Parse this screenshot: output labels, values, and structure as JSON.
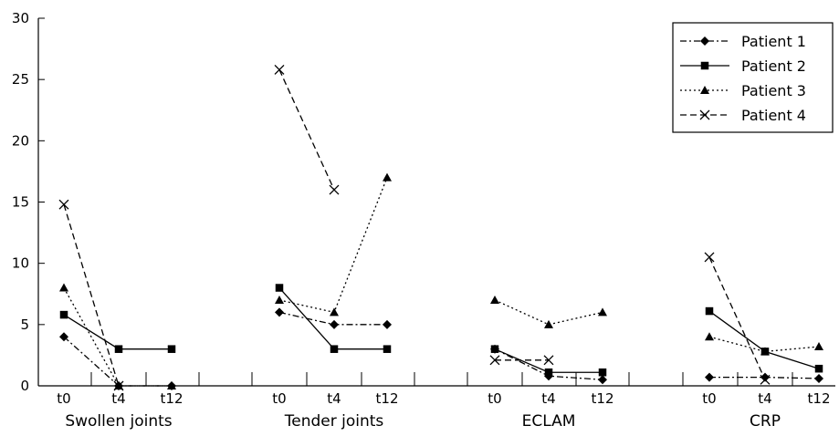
{
  "chart_data": {
    "type": "line",
    "title": "",
    "xlabel": "",
    "ylabel": "",
    "ylim": [
      0,
      30
    ],
    "y_ticks": [
      0,
      5,
      10,
      15,
      20,
      25,
      30
    ],
    "time_points": [
      "t0",
      "t4",
      "t12"
    ],
    "groups": [
      "Swollen joints",
      "Tender joints",
      "ECLAM",
      "CRP"
    ],
    "legend_position": "top-right",
    "grid": false,
    "series": [
      {
        "name": "Patient 1",
        "marker": "diamond",
        "dash": "dashdot",
        "values": {
          "Swollen joints": [
            4,
            0,
            0
          ],
          "Tender joints": [
            6,
            5,
            5
          ],
          "ECLAM": [
            3,
            0.8,
            0.5
          ],
          "CRP": [
            0.7,
            0.7,
            0.6
          ]
        }
      },
      {
        "name": "Patient 2",
        "marker": "square",
        "dash": "solid",
        "values": {
          "Swollen joints": [
            5.8,
            3,
            3
          ],
          "Tender joints": [
            8,
            3,
            3
          ],
          "ECLAM": [
            3,
            1.1,
            1.1
          ],
          "CRP": [
            6.1,
            2.8,
            1.4
          ]
        }
      },
      {
        "name": "Patient 3",
        "marker": "triangle",
        "dash": "dotted",
        "values": {
          "Swollen joints": [
            8,
            0,
            0
          ],
          "Tender joints": [
            7,
            6,
            17
          ],
          "ECLAM": [
            7,
            5,
            6
          ],
          "CRP": [
            4,
            2.8,
            3.2
          ]
        }
      },
      {
        "name": "Patient 4",
        "marker": "x",
        "dash": "dashed",
        "values": {
          "Swollen joints": [
            14.8,
            0,
            null
          ],
          "Tender joints": [
            25.8,
            16,
            null
          ],
          "ECLAM": [
            2.1,
            2.1,
            null
          ],
          "CRP": [
            10.5,
            0.5,
            null
          ]
        }
      }
    ]
  }
}
